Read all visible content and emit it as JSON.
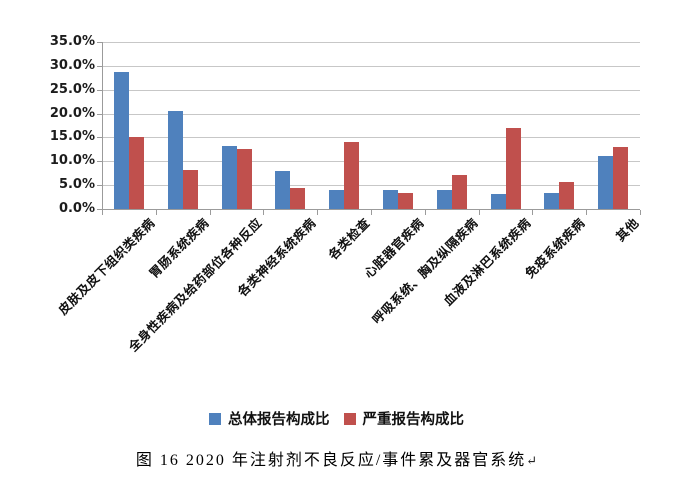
{
  "figure": {
    "caption": "图 16  2020 年注射剂不良反应/事件累及器官系统",
    "paragraph_mark": "↵"
  },
  "chart_data": {
    "type": "bar",
    "title": "",
    "xlabel": "",
    "ylabel": "",
    "categories": [
      "皮肤及皮下组织类疾病",
      "胃肠系统疾病",
      "全身性疾病及给药部位各种反应",
      "各类神经系统疾病",
      "各类检查",
      "心脏器官疾病",
      "呼吸系统、胸及纵隔疾病",
      "血液及淋巴系统疾病",
      "免疫系统疾病",
      "其他"
    ],
    "series": [
      {
        "name": "总体报告构成比",
        "color": "#4F81BD",
        "values": [
          28.7,
          20.6,
          13.1,
          7.9,
          4.0,
          4.0,
          4.0,
          3.2,
          3.3,
          11.1
        ]
      },
      {
        "name": "严重报告构成比",
        "color": "#C0504D",
        "values": [
          15.0,
          8.2,
          12.6,
          4.4,
          14.1,
          3.3,
          7.1,
          17.0,
          5.7,
          13.0
        ]
      }
    ],
    "ylim": [
      0,
      35
    ],
    "y_tick_step": 5,
    "y_ticks": [
      "0.0%",
      "5.0%",
      "10.0%",
      "15.0%",
      "20.0%",
      "25.0%",
      "30.0%",
      "35.0%"
    ],
    "grid": true,
    "legend_position": "bottom",
    "bar_unit": "percent"
  }
}
